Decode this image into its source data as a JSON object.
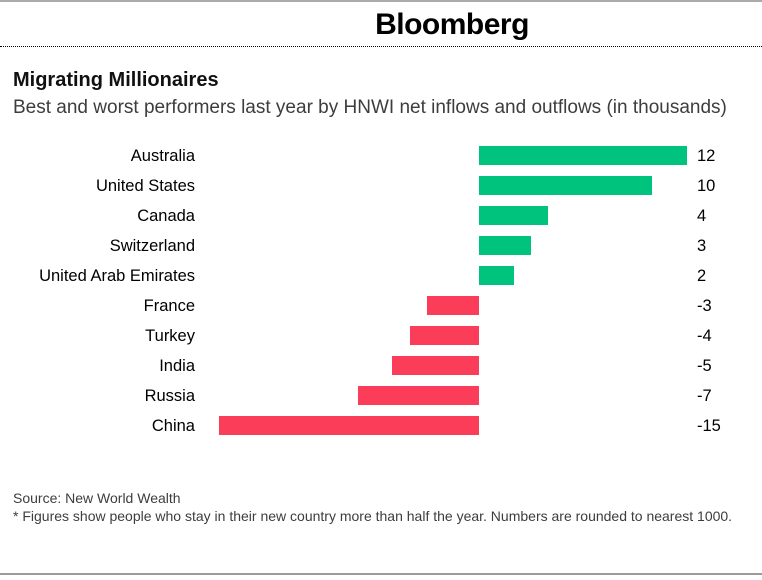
{
  "header": {
    "brand": "Bloomberg"
  },
  "title": "Migrating Millionaires",
  "subtitle": "Best and worst performers last year by HNWI net inflows and outflows (in thousands)",
  "source": "Source: New World Wealth",
  "footnote": "* Figures show people who stay in their new country more than half the year. Numbers are rounded to nearest 1000.",
  "chart_data": {
    "type": "bar",
    "orientation": "horizontal",
    "title": "Migrating Millionaires",
    "subtitle": "Best and worst performers last year by HNWI net inflows and outflows (in thousands)",
    "categories": [
      "Australia",
      "United States",
      "Canada",
      "Switzerland",
      "United Arab Emirates",
      "France",
      "Turkey",
      "India",
      "Russia",
      "China"
    ],
    "values": [
      12,
      10,
      4,
      3,
      2,
      -3,
      -4,
      -5,
      -7,
      -15
    ],
    "value_labels": [
      "12",
      "10",
      "4",
      "3",
      "2",
      "-3",
      "-4",
      "-5",
      "-7",
      "-15"
    ],
    "xlabel": "",
    "ylabel": "",
    "xlim": [
      -15,
      12
    ],
    "grid": false,
    "legend": false,
    "colors": {
      "positive": "#00c47e",
      "negative": "#fb3d59"
    }
  }
}
